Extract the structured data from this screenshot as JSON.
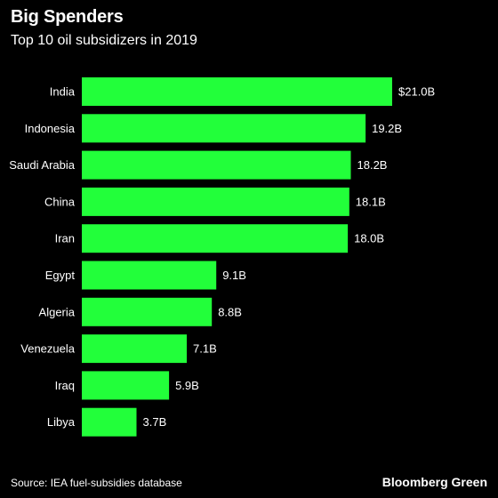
{
  "header": {
    "title": "Big Spenders",
    "subtitle": "Top 10 oil subsidizers in 2019"
  },
  "footer": {
    "source": "Source: IEA fuel-subsidies database",
    "brand": "Bloomberg Green"
  },
  "colors": {
    "background": "#000000",
    "bar": "#22ff3a",
    "text": "#ffffff"
  },
  "chart_data": {
    "type": "bar",
    "orientation": "horizontal",
    "title": "Big Spenders",
    "subtitle": "Top 10 oil subsidizers in 2019",
    "categories": [
      "India",
      "Indonesia",
      "Saudi Arabia",
      "China",
      "Iran",
      "Egypt",
      "Algeria",
      "Venezuela",
      "Iraq",
      "Libya"
    ],
    "values": [
      21.0,
      19.2,
      18.2,
      18.1,
      18.0,
      9.1,
      8.8,
      7.1,
      5.9,
      3.7
    ],
    "value_labels": [
      "$21.0B",
      "19.2B",
      "18.2B",
      "18.1B",
      "18.0B",
      "9.1B",
      "8.8B",
      "7.1B",
      "5.9B",
      "3.7B"
    ],
    "xlim": [
      0,
      21.0
    ],
    "grid": false,
    "legend": "none"
  }
}
